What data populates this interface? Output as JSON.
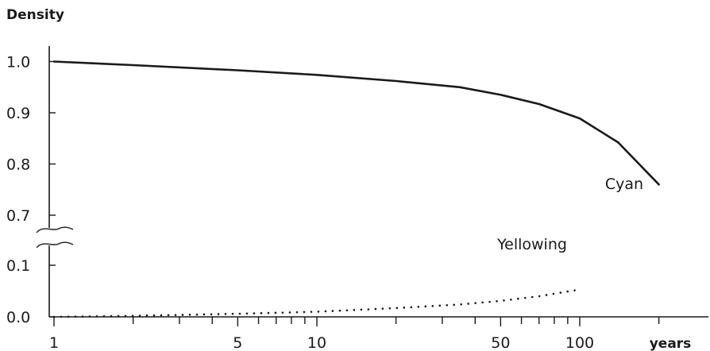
{
  "chart_data": {
    "type": "line",
    "ylabel": "Density",
    "xlabel": "years",
    "x_scale": "log",
    "xlim": [
      1,
      220
    ],
    "x_ticks_major": [
      {
        "value": 1,
        "label": "1"
      },
      {
        "value": 5,
        "label": "5"
      },
      {
        "value": 10,
        "label": "10"
      },
      {
        "value": 50,
        "label": "50"
      },
      {
        "value": 100,
        "label": "100"
      }
    ],
    "x_ticks_minor": [
      2,
      3,
      4,
      6,
      7,
      8,
      9,
      20,
      30,
      40,
      60,
      70,
      80,
      90,
      200
    ],
    "y_axis_break": {
      "from": 0.1,
      "to": 0.7
    },
    "y_ticks": [
      {
        "value": 0.0,
        "label": "0.0"
      },
      {
        "value": 0.1,
        "label": "0.1"
      },
      {
        "value": 0.7,
        "label": "0.7"
      },
      {
        "value": 0.8,
        "label": "0.8"
      },
      {
        "value": 0.9,
        "label": "0.9"
      },
      {
        "value": 1.0,
        "label": "1.0"
      }
    ],
    "grid": false,
    "series": [
      {
        "name": "Cyan",
        "style": "solid",
        "color": "#1a1a1a",
        "x": [
          1,
          2,
          5,
          10,
          20,
          35,
          50,
          70,
          100,
          140,
          200
        ],
        "y": [
          1.0,
          0.993,
          0.983,
          0.974,
          0.962,
          0.95,
          0.935,
          0.917,
          0.889,
          0.842,
          0.76
        ]
      },
      {
        "name": "Yellowing",
        "style": "dotted",
        "color": "#1a1a1a",
        "x": [
          1,
          2,
          5,
          10,
          20,
          35,
          50,
          70,
          100
        ],
        "y": [
          0.0,
          0.002,
          0.006,
          0.01,
          0.017,
          0.024,
          0.031,
          0.04,
          0.053
        ]
      }
    ]
  }
}
